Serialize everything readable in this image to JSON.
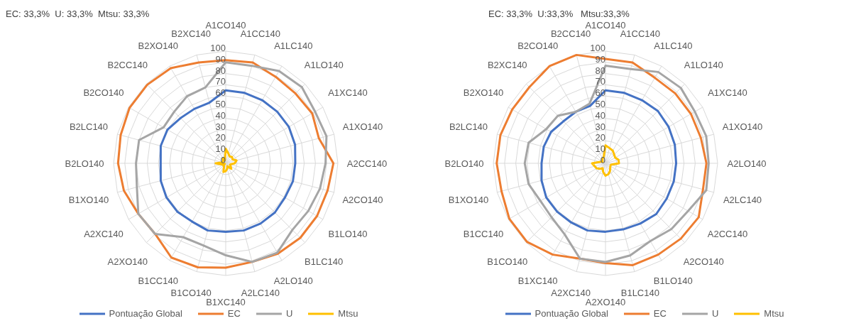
{
  "chart_data": [
    {
      "type": "radar",
      "title": "EC: 33,3%  U: 33,3%  Mtsu: 33,3%",
      "categories": [
        "A1CO140",
        "A1CC140",
        "A1LC140",
        "A1LO140",
        "A1XC140",
        "A1XO140",
        "A2CC140",
        "A2CO140",
        "B1LO140",
        "B1LC140",
        "A2LO140",
        "A2LC140",
        "B1XC140",
        "B1CO140",
        "B1CC140",
        "A2XO140",
        "A2XC140",
        "B1XO140",
        "B2LO140",
        "B2LC140",
        "B2CO140",
        "B2CC140",
        "B2XO140",
        "B2XC140"
      ],
      "ylim": [
        0,
        100
      ],
      "yticks": [
        0,
        10,
        20,
        30,
        40,
        50,
        60,
        70,
        80,
        90,
        100
      ],
      "grid": true,
      "legend": "bottom",
      "marker": "none",
      "series": [
        {
          "name": "Pontuação Global",
          "color": "#4472c4",
          "values": [
            65,
            65,
            65,
            65,
            65,
            64,
            62,
            62,
            61,
            62,
            62,
            62,
            61,
            62,
            60,
            61,
            61,
            60,
            58,
            60,
            60,
            57,
            56,
            56
          ]
        },
        {
          "name": "EC",
          "color": "#ed7d31",
          "values": [
            92,
            93,
            89,
            88,
            89,
            86,
            96,
            94,
            94,
            94,
            93,
            91,
            93,
            96,
            97,
            89,
            90,
            94,
            96,
            97,
            99,
            99,
            98,
            93
          ]
        },
        {
          "name": "U",
          "color": "#a5a5a5",
          "values": [
            90,
            90,
            95,
            96,
            92,
            93,
            89,
            87,
            85,
            84,
            92,
            91,
            82,
            76,
            76,
            89,
            90,
            82,
            80,
            80,
            64,
            65,
            69,
            70
          ]
        },
        {
          "name": "Mtsu",
          "color": "#ffc000",
          "values": [
            13,
            9,
            7,
            8,
            7,
            10,
            8,
            4,
            5,
            7,
            3,
            5,
            7,
            8,
            3,
            3,
            1,
            4,
            9,
            3,
            3,
            3,
            5,
            3
          ]
        }
      ]
    },
    {
      "type": "radar",
      "title": "EC: 33,3%  U:33,3%   Mtsu:33,3%",
      "categories": [
        "A1CO140",
        "A1CC140",
        "A1LC140",
        "A1LO140",
        "A1XC140",
        "A1XO140",
        "A2LO140",
        "A2LC140",
        "A2CC140",
        "A2CO140",
        "B1LO140",
        "B1LC140",
        "A2XO140",
        "A2XC140",
        "B1XC140",
        "B1CO140",
        "B1CC140",
        "B1XO140",
        "B2LO140",
        "B2LC140",
        "B2XO140",
        "B2XC140",
        "B2CO140",
        "B2CC140"
      ],
      "ylim": [
        0,
        100
      ],
      "yticks": [
        0,
        10,
        20,
        30,
        40,
        50,
        60,
        70,
        80,
        90,
        100
      ],
      "grid": true,
      "legend": "bottom",
      "marker": "none",
      "series": [
        {
          "name": "Pontuação Global",
          "color": "#4472c4",
          "values": [
            65,
            65,
            65,
            66,
            65,
            64,
            63,
            63,
            63,
            64,
            62,
            61,
            61,
            62,
            61,
            61,
            61,
            59,
            57,
            57,
            56,
            53,
            53,
            53
          ]
        },
        {
          "name": "EC",
          "color": "#ed7d31",
          "values": [
            93,
            93,
            88,
            88,
            88,
            88,
            90,
            90,
            96,
            95,
            94,
            94,
            89,
            88,
            94,
            99,
            99,
            96,
            97,
            97,
            96,
            96,
            100,
            100
          ]
        },
        {
          "name": "U",
          "color": "#a5a5a5",
          "values": [
            87,
            87,
            94,
            95,
            92,
            93,
            92,
            93,
            85,
            83,
            80,
            85,
            88,
            88,
            73,
            68,
            67,
            71,
            72,
            71,
            61,
            60,
            53,
            55
          ]
        },
        {
          "name": "Mtsu",
          "color": "#ffc000",
          "values": [
            16,
            14,
            13,
            11,
            10,
            12,
            12,
            5,
            5,
            6,
            8,
            10,
            11,
            8,
            5,
            7,
            9,
            10,
            12,
            5,
            3,
            4,
            5,
            6
          ]
        }
      ]
    }
  ]
}
